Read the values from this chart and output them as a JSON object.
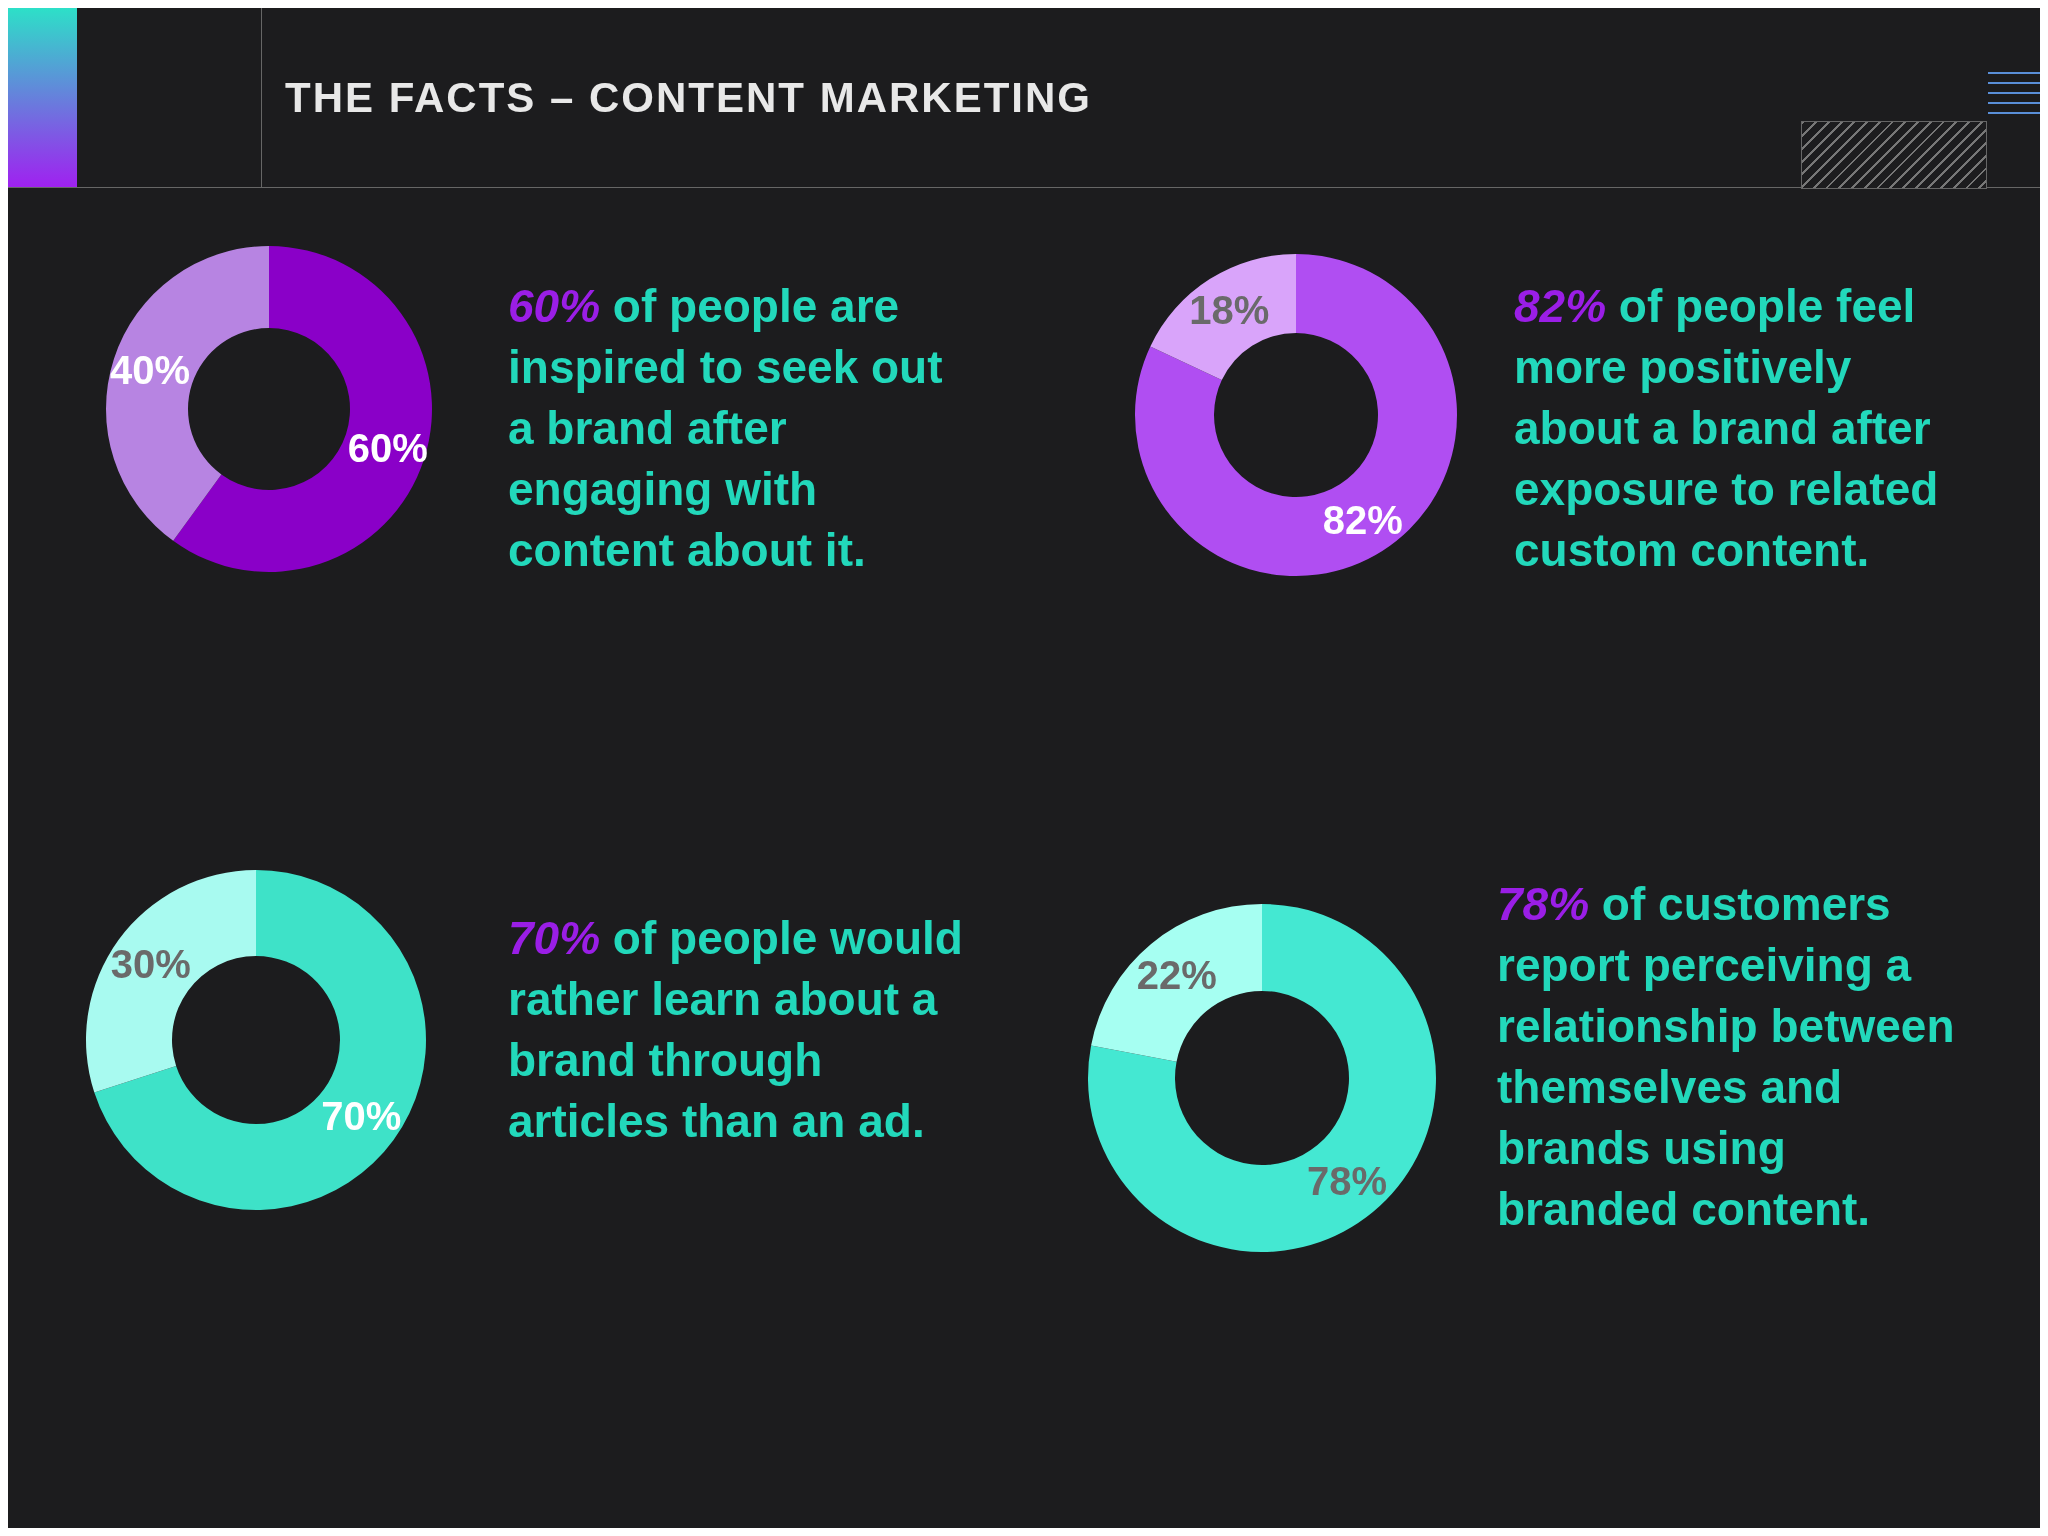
{
  "chart_data": [
    {
      "type": "donut",
      "title": "THE FACTS – CONTENT MARKETING",
      "categories": [
        null,
        null
      ],
      "values": [
        60,
        40
      ],
      "colors": [
        "#8a00c8",
        "#b784e2"
      ],
      "value_labels": [
        "60%",
        "40%"
      ],
      "annotations": [
        "60% of people are inspired to seek out a brand after engaging with content about it."
      ]
    },
    {
      "type": "donut",
      "categories": [
        null,
        null
      ],
      "values": [
        82,
        18
      ],
      "colors": [
        "#b04ef2",
        "#d9a4fa"
      ],
      "value_labels": [
        "82%",
        "18%"
      ],
      "annotations": [
        "82% of people feel more positively about a brand after exposure to related custom content."
      ]
    },
    {
      "type": "donut",
      "categories": [
        null,
        null
      ],
      "values": [
        70,
        30
      ],
      "colors": [
        "#3ee2c8",
        "#a8faf0"
      ],
      "value_labels": [
        "70%",
        "30%"
      ],
      "annotations": [
        "70% of people would rather learn about a brand through articles than an ad."
      ]
    },
    {
      "type": "donut",
      "categories": [
        null,
        null
      ],
      "values": [
        78,
        22
      ],
      "colors": [
        "#44e8d2",
        "#a6fff2"
      ],
      "value_labels": [
        "78%",
        "22%"
      ],
      "annotations": [
        "78% of customers report perceiving a relationship between themselves and brands using branded content."
      ]
    }
  ]
}
